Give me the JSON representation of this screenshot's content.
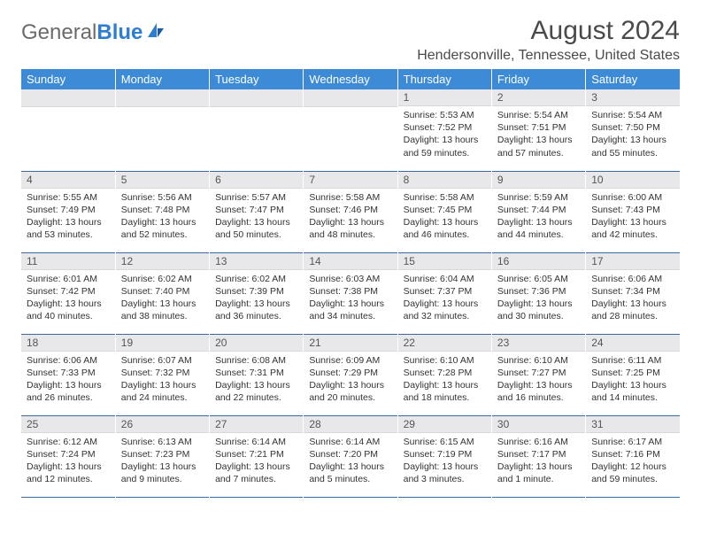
{
  "logo": {
    "text_gray": "General",
    "text_blue": "Blue"
  },
  "title": "August 2024",
  "location": "Hendersonville, Tennessee, United States",
  "colors": {
    "header_bg": "#3d8bd6",
    "header_text": "#ffffff",
    "daynum_bg": "#e8e8ea",
    "week_border": "#3d6a9a",
    "logo_gray": "#6b6b6b",
    "logo_blue": "#2d7dd2"
  },
  "day_headers": [
    "Sunday",
    "Monday",
    "Tuesday",
    "Wednesday",
    "Thursday",
    "Friday",
    "Saturday"
  ],
  "weeks": [
    [
      null,
      null,
      null,
      null,
      {
        "n": "1",
        "sr": "5:53 AM",
        "ss": "7:52 PM",
        "dl": "13 hours and 59 minutes."
      },
      {
        "n": "2",
        "sr": "5:54 AM",
        "ss": "7:51 PM",
        "dl": "13 hours and 57 minutes."
      },
      {
        "n": "3",
        "sr": "5:54 AM",
        "ss": "7:50 PM",
        "dl": "13 hours and 55 minutes."
      }
    ],
    [
      {
        "n": "4",
        "sr": "5:55 AM",
        "ss": "7:49 PM",
        "dl": "13 hours and 53 minutes."
      },
      {
        "n": "5",
        "sr": "5:56 AM",
        "ss": "7:48 PM",
        "dl": "13 hours and 52 minutes."
      },
      {
        "n": "6",
        "sr": "5:57 AM",
        "ss": "7:47 PM",
        "dl": "13 hours and 50 minutes."
      },
      {
        "n": "7",
        "sr": "5:58 AM",
        "ss": "7:46 PM",
        "dl": "13 hours and 48 minutes."
      },
      {
        "n": "8",
        "sr": "5:58 AM",
        "ss": "7:45 PM",
        "dl": "13 hours and 46 minutes."
      },
      {
        "n": "9",
        "sr": "5:59 AM",
        "ss": "7:44 PM",
        "dl": "13 hours and 44 minutes."
      },
      {
        "n": "10",
        "sr": "6:00 AM",
        "ss": "7:43 PM",
        "dl": "13 hours and 42 minutes."
      }
    ],
    [
      {
        "n": "11",
        "sr": "6:01 AM",
        "ss": "7:42 PM",
        "dl": "13 hours and 40 minutes."
      },
      {
        "n": "12",
        "sr": "6:02 AM",
        "ss": "7:40 PM",
        "dl": "13 hours and 38 minutes."
      },
      {
        "n": "13",
        "sr": "6:02 AM",
        "ss": "7:39 PM",
        "dl": "13 hours and 36 minutes."
      },
      {
        "n": "14",
        "sr": "6:03 AM",
        "ss": "7:38 PM",
        "dl": "13 hours and 34 minutes."
      },
      {
        "n": "15",
        "sr": "6:04 AM",
        "ss": "7:37 PM",
        "dl": "13 hours and 32 minutes."
      },
      {
        "n": "16",
        "sr": "6:05 AM",
        "ss": "7:36 PM",
        "dl": "13 hours and 30 minutes."
      },
      {
        "n": "17",
        "sr": "6:06 AM",
        "ss": "7:34 PM",
        "dl": "13 hours and 28 minutes."
      }
    ],
    [
      {
        "n": "18",
        "sr": "6:06 AM",
        "ss": "7:33 PM",
        "dl": "13 hours and 26 minutes."
      },
      {
        "n": "19",
        "sr": "6:07 AM",
        "ss": "7:32 PM",
        "dl": "13 hours and 24 minutes."
      },
      {
        "n": "20",
        "sr": "6:08 AM",
        "ss": "7:31 PM",
        "dl": "13 hours and 22 minutes."
      },
      {
        "n": "21",
        "sr": "6:09 AM",
        "ss": "7:29 PM",
        "dl": "13 hours and 20 minutes."
      },
      {
        "n": "22",
        "sr": "6:10 AM",
        "ss": "7:28 PM",
        "dl": "13 hours and 18 minutes."
      },
      {
        "n": "23",
        "sr": "6:10 AM",
        "ss": "7:27 PM",
        "dl": "13 hours and 16 minutes."
      },
      {
        "n": "24",
        "sr": "6:11 AM",
        "ss": "7:25 PM",
        "dl": "13 hours and 14 minutes."
      }
    ],
    [
      {
        "n": "25",
        "sr": "6:12 AM",
        "ss": "7:24 PM",
        "dl": "13 hours and 12 minutes."
      },
      {
        "n": "26",
        "sr": "6:13 AM",
        "ss": "7:23 PM",
        "dl": "13 hours and 9 minutes."
      },
      {
        "n": "27",
        "sr": "6:14 AM",
        "ss": "7:21 PM",
        "dl": "13 hours and 7 minutes."
      },
      {
        "n": "28",
        "sr": "6:14 AM",
        "ss": "7:20 PM",
        "dl": "13 hours and 5 minutes."
      },
      {
        "n": "29",
        "sr": "6:15 AM",
        "ss": "7:19 PM",
        "dl": "13 hours and 3 minutes."
      },
      {
        "n": "30",
        "sr": "6:16 AM",
        "ss": "7:17 PM",
        "dl": "13 hours and 1 minute."
      },
      {
        "n": "31",
        "sr": "6:17 AM",
        "ss": "7:16 PM",
        "dl": "12 hours and 59 minutes."
      }
    ]
  ],
  "labels": {
    "sunrise": "Sunrise:",
    "sunset": "Sunset:",
    "daylight": "Daylight:"
  }
}
